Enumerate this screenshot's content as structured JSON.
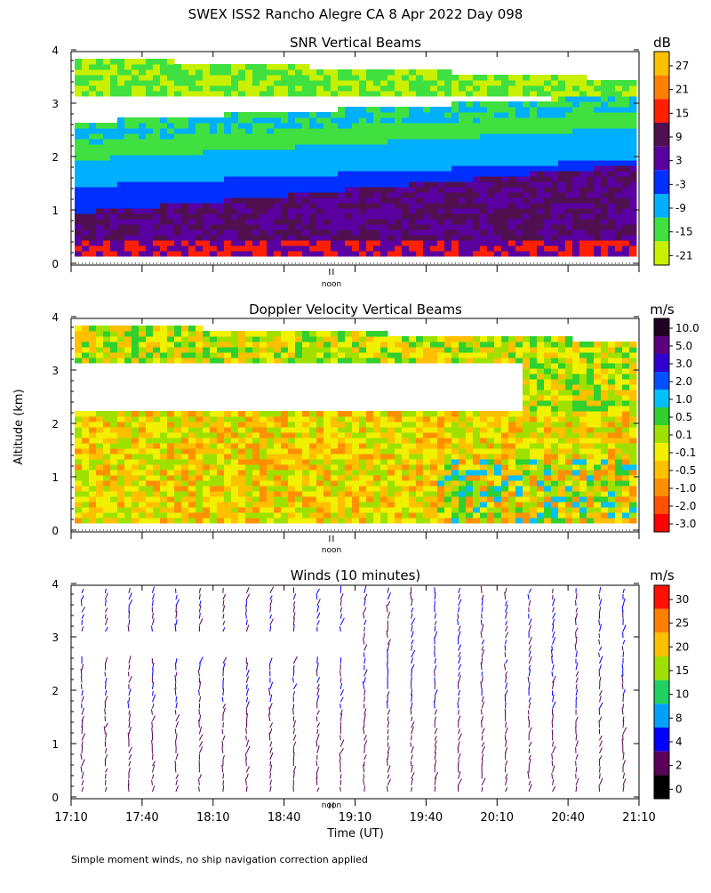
{
  "title": "SWEX ISS2 Rancho Alegre CA   8 Apr 2022 Day 098",
  "footnote": "Simple moment winds, no ship navigation correction applied",
  "shared": {
    "ylabel": "Altitude (km)",
    "xlabel": "Time (UT)",
    "noon_label": "noon",
    "y_ticks": [
      "0",
      "1",
      "2",
      "3",
      "4"
    ],
    "x_ticks": [
      "17:10",
      "17:40",
      "18:10",
      "18:40",
      "19:10",
      "19:40",
      "20:10",
      "20:40",
      "21:10"
    ]
  },
  "chart_data": [
    {
      "type": "heatmap",
      "title": "SNR Vertical Beams",
      "colorbar_unit": "dB",
      "colorbar_labels": [
        "27",
        "21",
        "15",
        "9",
        "3",
        "-3",
        "-9",
        "-15",
        "-21"
      ],
      "colorbar_colors": [
        "#ffc000",
        "#ff8000",
        "#ff2000",
        "#501050",
        "#5a00a0",
        "#0030ff",
        "#00b0ff",
        "#40e040",
        "#c8f000"
      ],
      "ylim": [
        0,
        4
      ],
      "xlim": [
        "17:10",
        "21:10"
      ],
      "layers": [
        {
          "from_km": 0.1,
          "to_km": 0.5,
          "value_db": 14
        },
        {
          "from_km": 0.5,
          "to_km": 1.0,
          "value_db": 3
        },
        {
          "from_km": 1.0,
          "to_km": 1.5,
          "value_db": -3
        },
        {
          "from_km": 1.5,
          "to_km": 2.0,
          "value_db": -9
        },
        {
          "from_km": 2.0,
          "to_km": 2.3,
          "value_db": -15
        },
        {
          "from_km": 2.6,
          "to_km": 3.2,
          "value_db": null
        },
        {
          "from_km": 3.2,
          "to_km": 3.9,
          "value_db": -18
        }
      ]
    },
    {
      "type": "heatmap",
      "title": "Doppler Velocity Vertical Beams",
      "colorbar_unit": "m/s",
      "colorbar_labels": [
        "10.0",
        "5.0",
        "3.0",
        "2.0",
        "1.0",
        "0.5",
        "0.1",
        "-0.1",
        "-0.5",
        "-1.0",
        "-2.0",
        "-3.0"
      ],
      "colorbar_colors": [
        "#200020",
        "#5a0080",
        "#3000d0",
        "#0050ff",
        "#00c0ff",
        "#30d030",
        "#a0e000",
        "#f0f000",
        "#ffc000",
        "#ff9000",
        "#ff5000",
        "#ff0000"
      ],
      "ylim": [
        0,
        4
      ],
      "xlim": [
        "17:10",
        "21:10"
      ],
      "layers": [
        {
          "from_km": 0.1,
          "to_km": 2.3,
          "value_ms": -0.1
        },
        {
          "from_km": 2.3,
          "to_km": 3.2,
          "value_ms": null
        },
        {
          "from_km": 3.2,
          "to_km": 3.9,
          "value_ms": 0.0
        }
      ]
    },
    {
      "type": "scatter",
      "title": "Winds (10 minutes)",
      "colorbar_unit": "m/s",
      "colorbar_labels": [
        "30",
        "25",
        "20",
        "15",
        "10",
        "8",
        "4",
        "2",
        "0"
      ],
      "colorbar_colors": [
        "#ff1000",
        "#ff8000",
        "#ffc000",
        "#a0e000",
        "#20d060",
        "#00a0ff",
        "#0000ff",
        "#5a005a",
        "#000000"
      ],
      "ylim": [
        0,
        4
      ],
      "xlim": [
        "17:10",
        "21:10"
      ],
      "wind_profiles": 24,
      "typical_speed_ms": 4
    }
  ]
}
